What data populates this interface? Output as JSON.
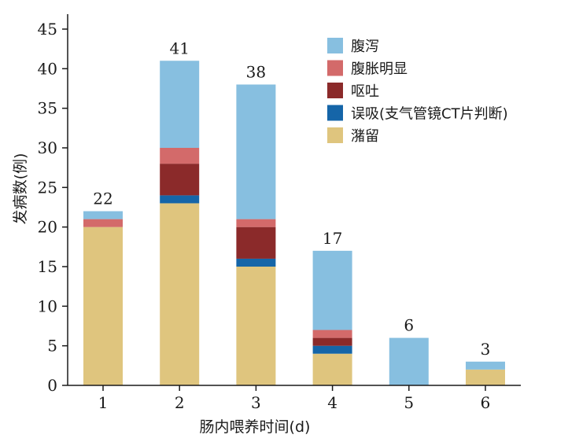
{
  "chart_data": {
    "type": "bar",
    "stacked": true,
    "xlabel": "肠内喂养时间(d)",
    "ylabel": "发病数(例)",
    "ylim": [
      0,
      45
    ],
    "yticks": [
      0,
      5,
      10,
      15,
      20,
      25,
      30,
      35,
      40,
      45
    ],
    "categories": [
      "1",
      "2",
      "3",
      "4",
      "5",
      "6"
    ],
    "series": [
      {
        "name": "潴留",
        "color": "#dfc57e",
        "values": [
          20,
          23,
          15,
          4,
          0,
          2
        ]
      },
      {
        "name": "误吸(支气管镜CT片判断)",
        "color": "#1565a8",
        "values": [
          0,
          1,
          1,
          1,
          0,
          0
        ]
      },
      {
        "name": "呕吐",
        "color": "#8b2a2a",
        "values": [
          0,
          4,
          4,
          1,
          0,
          0
        ]
      },
      {
        "name": "腹胀明显",
        "color": "#d36a6a",
        "values": [
          1,
          2,
          1,
          1,
          0,
          0
        ]
      },
      {
        "name": "腹泻",
        "color": "#87bfe0",
        "values": [
          1,
          11,
          17,
          10,
          6,
          1
        ]
      }
    ],
    "legend_order": [
      "腹泻",
      "腹胀明显",
      "呕吐",
      "误吸(支气管镜CT片判断)",
      "潴留"
    ],
    "legend_position": "top-right",
    "totals": [
      22,
      41,
      38,
      17,
      6,
      3
    ],
    "grid": false
  }
}
